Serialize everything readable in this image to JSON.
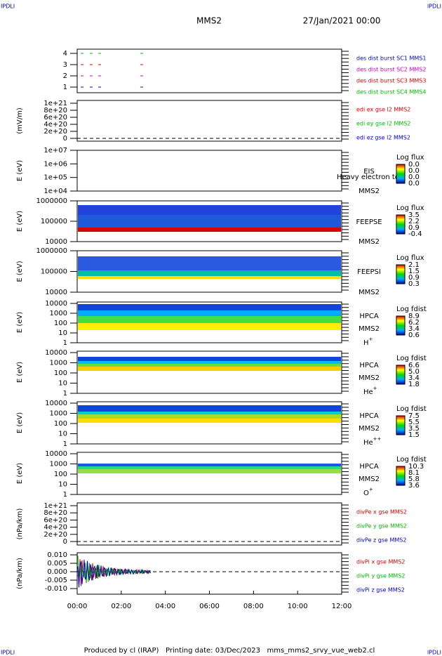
{
  "corner_labels": [
    "IPDLI",
    "IPDLI",
    "IPDLI",
    "IPDLI"
  ],
  "header": {
    "title": "MMS2",
    "date": "27/Jan/2021 00:00"
  },
  "panels": [
    {
      "y_ticks": [
        "4",
        "3",
        "2",
        "1"
      ],
      "legend": [
        {
          "text": "des dist burst SC1 MMS1",
          "color": "#0000cc"
        },
        {
          "text": "des dist burst SC2 MMS2",
          "color": "#cc00cc"
        },
        {
          "text": "des dist burst SC3 MMS3",
          "color": "#dd0000"
        },
        {
          "text": "des dist burst SC4 MMS4",
          "color": "#00bb00"
        }
      ]
    },
    {
      "y_label": "(mV/m)",
      "y_ticks": [
        "1e+21",
        "8e+20",
        "6e+20",
        "4e+20",
        "2e+20",
        "0"
      ],
      "legend": [
        {
          "text": "edi ex gse l2 MMS2",
          "color": "#dd0000"
        },
        {
          "text": "edi ey gse l2 MMS2",
          "color": "#00bb00"
        },
        {
          "text": "edi ez gse l2 MMS2",
          "color": "#0000cc"
        }
      ]
    },
    {
      "y_label": "E (eV)",
      "y_ticks": [
        "1e+07",
        "1e+06",
        "1e+05",
        "1e+04"
      ],
      "instrument": "EIS",
      "overlay": "Heavy electron to",
      "spacecraft": "MMS2",
      "colorbar": {
        "title": "Log flux",
        "ticks": [
          "0.0",
          "0.0",
          "0.0",
          "0.0"
        ]
      }
    },
    {
      "y_label": "E (eV)",
      "y_ticks": [
        "1000000",
        "100000",
        "10000"
      ],
      "instrument": "FEEPSE",
      "spacecraft": "MMS2",
      "colorbar": {
        "title": "Log flux",
        "ticks": [
          "3.5",
          "2.2",
          "0.9",
          "-0.4"
        ]
      }
    },
    {
      "y_label": "E (eV)",
      "y_ticks": [
        "1000000",
        "100000",
        "10000"
      ],
      "instrument": "FEEPSI",
      "spacecraft": "MMS2",
      "colorbar": {
        "title": "Log flux",
        "ticks": [
          "2.1",
          "1.5",
          "0.9",
          "0.3"
        ]
      }
    },
    {
      "y_label": "E (eV)",
      "y_ticks": [
        "10000",
        "1000",
        "100",
        "10",
        "1"
      ],
      "instrument": "HPCA",
      "spacecraft": "MMS2",
      "species": {
        "base": "H",
        "charge": "+"
      },
      "colorbar": {
        "title": "Log fdist",
        "ticks": [
          "8.9",
          "6.2",
          "3.4",
          "0.6"
        ]
      }
    },
    {
      "y_label": "E (eV)",
      "y_ticks": [
        "10000",
        "1000",
        "100",
        "10",
        "1"
      ],
      "instrument": "HPCA",
      "spacecraft": "MMS2",
      "species": {
        "base": "He",
        "charge": "+"
      },
      "colorbar": {
        "title": "Log fdist",
        "ticks": [
          "6.6",
          "5.0",
          "3.4",
          "1.8"
        ]
      }
    },
    {
      "y_label": "E (eV)",
      "y_ticks": [
        "10000",
        "1000",
        "100",
        "10",
        "1"
      ],
      "instrument": "HPCA",
      "spacecraft": "MMS2",
      "species": {
        "base": "He",
        "charge": "++"
      },
      "colorbar": {
        "title": "Log fdist",
        "ticks": [
          "7.5",
          "5.5",
          "3.5",
          "1.5"
        ]
      }
    },
    {
      "y_label": "E (eV)",
      "y_ticks": [
        "10000",
        "1000",
        "100",
        "10",
        "1"
      ],
      "instrument": "HPCA",
      "spacecraft": "MMS2",
      "species": {
        "base": "O",
        "charge": "+"
      },
      "colorbar": {
        "title": "Log fdist",
        "ticks": [
          "10.3",
          "8.1",
          "5.8",
          "3.6"
        ]
      }
    },
    {
      "y_label": "(nPa/km)",
      "y_ticks": [
        "1e+21",
        "8e+20",
        "6e+20",
        "4e+20",
        "2e+20",
        "0"
      ],
      "legend": [
        {
          "text": "divPe x gse MMS2",
          "color": "#dd0000"
        },
        {
          "text": "divPe y gse MMS2",
          "color": "#00bb00"
        },
        {
          "text": "divPe z gse MMS2",
          "color": "#0000cc"
        }
      ]
    },
    {
      "y_label": "(nPa/km)",
      "y_ticks": [
        "0.010",
        "0.005",
        "0.000",
        "-0.005",
        "-0.010"
      ],
      "legend": [
        {
          "text": "divPi x gse MMS2",
          "color": "#dd0000"
        },
        {
          "text": "divPi y gse MMS2",
          "color": "#00bb00"
        },
        {
          "text": "divPi z gse MMS2",
          "color": "#0000cc"
        }
      ]
    }
  ],
  "x_ticks": [
    "00:00",
    "02:00",
    "04:00",
    "06:00",
    "08:00",
    "10:00",
    "12:00"
  ],
  "footer": "Produced by cl (IRAP)   Printing date: 03/Dec/2023   mms_mms2_srvy_vue_web2.cl"
}
